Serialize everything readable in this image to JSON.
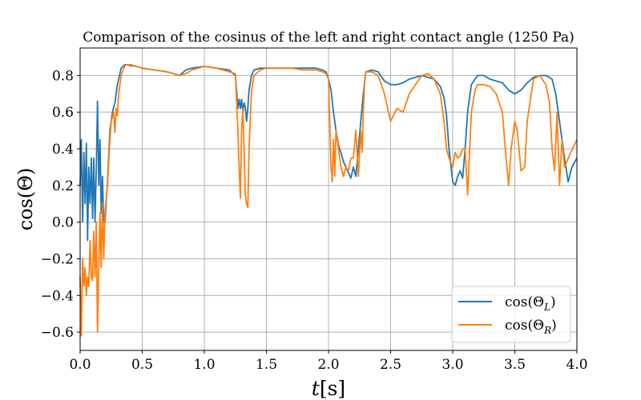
{
  "chart_data": {
    "type": "line",
    "title": "Comparison of the cosinus of the left and right contact angle (1250 Pa)",
    "xlabel_var": "t",
    "xlabel_unit": "[s]",
    "ylabel": "cos(Θ)",
    "xlim": [
      0.0,
      4.0
    ],
    "ylim": [
      -0.7,
      0.95
    ],
    "grid": true,
    "legend_position": "lower-right",
    "x_ticks": [
      "0.0",
      "0.5",
      "1.0",
      "1.5",
      "2.0",
      "2.5",
      "3.0",
      "3.5",
      "4.0"
    ],
    "y_ticks": [
      "−0.6",
      "−0.4",
      "−0.2",
      "0.0",
      "0.2",
      "0.4",
      "0.6",
      "0.8"
    ],
    "series": [
      {
        "name": "cos(Θ_L)",
        "legend_base": "cos(Θ",
        "legend_sub": "L",
        "legend_close": ")",
        "color": "#1f77b4",
        "x": [
          0.0,
          0.01,
          0.02,
          0.03,
          0.04,
          0.05,
          0.06,
          0.07,
          0.08,
          0.09,
          0.1,
          0.11,
          0.12,
          0.13,
          0.14,
          0.15,
          0.16,
          0.17,
          0.18,
          0.19,
          0.2,
          0.22,
          0.24,
          0.26,
          0.28,
          0.3,
          0.33,
          0.36,
          0.4,
          0.45,
          0.5,
          0.6,
          0.7,
          0.8,
          0.85,
          0.9,
          1.0,
          1.1,
          1.2,
          1.25,
          1.27,
          1.28,
          1.29,
          1.3,
          1.31,
          1.32,
          1.33,
          1.34,
          1.35,
          1.36,
          1.38,
          1.4,
          1.45,
          1.5,
          1.6,
          1.7,
          1.8,
          1.9,
          1.95,
          1.98,
          2.0,
          2.02,
          2.04,
          2.06,
          2.08,
          2.1,
          2.12,
          2.14,
          2.16,
          2.18,
          2.2,
          2.22,
          2.24,
          2.26,
          2.28,
          2.3,
          2.35,
          2.4,
          2.45,
          2.5,
          2.55,
          2.6,
          2.65,
          2.7,
          2.75,
          2.8,
          2.85,
          2.9,
          2.93,
          2.95,
          2.97,
          3.0,
          3.02,
          3.04,
          3.06,
          3.08,
          3.1,
          3.12,
          3.15,
          3.2,
          3.25,
          3.3,
          3.35,
          3.4,
          3.45,
          3.5,
          3.55,
          3.6,
          3.65,
          3.7,
          3.75,
          3.8,
          3.83,
          3.86,
          3.9,
          3.93,
          3.96,
          4.0
        ],
        "values": [
          0.2,
          0.45,
          0.0,
          0.38,
          0.1,
          0.43,
          -0.1,
          0.3,
          0.1,
          0.35,
          0.02,
          0.35,
          0.0,
          0.3,
          0.66,
          0.2,
          0.45,
          0.05,
          0.25,
          0.0,
          0.0,
          0.22,
          0.5,
          0.6,
          0.65,
          0.75,
          0.84,
          0.86,
          0.855,
          0.85,
          0.84,
          0.83,
          0.82,
          0.8,
          0.83,
          0.84,
          0.85,
          0.84,
          0.83,
          0.8,
          0.62,
          0.67,
          0.62,
          0.67,
          0.6,
          0.65,
          0.63,
          0.55,
          0.62,
          0.72,
          0.8,
          0.83,
          0.84,
          0.84,
          0.84,
          0.84,
          0.84,
          0.84,
          0.83,
          0.82,
          0.78,
          0.72,
          0.6,
          0.5,
          0.42,
          0.38,
          0.33,
          0.3,
          0.27,
          0.24,
          0.3,
          0.25,
          0.4,
          0.55,
          0.7,
          0.82,
          0.83,
          0.82,
          0.77,
          0.75,
          0.75,
          0.76,
          0.78,
          0.79,
          0.8,
          0.79,
          0.78,
          0.74,
          0.68,
          0.58,
          0.4,
          0.22,
          0.2,
          0.25,
          0.28,
          0.24,
          0.4,
          0.6,
          0.75,
          0.8,
          0.8,
          0.78,
          0.77,
          0.76,
          0.72,
          0.7,
          0.72,
          0.76,
          0.79,
          0.8,
          0.8,
          0.78,
          0.7,
          0.55,
          0.35,
          0.22,
          0.3,
          0.35
        ]
      },
      {
        "name": "cos(Θ_R)",
        "legend_base": "cos(Θ",
        "legend_sub": "R",
        "legend_close": ")",
        "color": "#ff7f0e",
        "x": [
          0.0,
          0.01,
          0.02,
          0.03,
          0.04,
          0.05,
          0.06,
          0.07,
          0.08,
          0.09,
          0.1,
          0.11,
          0.12,
          0.13,
          0.14,
          0.15,
          0.16,
          0.17,
          0.18,
          0.19,
          0.2,
          0.22,
          0.24,
          0.25,
          0.27,
          0.28,
          0.29,
          0.3,
          0.31,
          0.33,
          0.36,
          0.4,
          0.45,
          0.5,
          0.6,
          0.7,
          0.8,
          0.85,
          0.9,
          1.0,
          1.1,
          1.2,
          1.25,
          1.27,
          1.28,
          1.29,
          1.3,
          1.31,
          1.32,
          1.33,
          1.34,
          1.35,
          1.36,
          1.38,
          1.4,
          1.45,
          1.5,
          1.6,
          1.7,
          1.8,
          1.9,
          1.95,
          1.98,
          2.0,
          2.02,
          2.03,
          2.04,
          2.05,
          2.06,
          2.08,
          2.1,
          2.12,
          2.14,
          2.16,
          2.18,
          2.2,
          2.22,
          2.24,
          2.26,
          2.27,
          2.28,
          2.29,
          2.3,
          2.35,
          2.4,
          2.45,
          2.5,
          2.55,
          2.6,
          2.65,
          2.7,
          2.75,
          2.8,
          2.85,
          2.9,
          2.93,
          2.95,
          2.97,
          3.0,
          3.02,
          3.04,
          3.06,
          3.08,
          3.1,
          3.12,
          3.15,
          3.18,
          3.2,
          3.25,
          3.3,
          3.35,
          3.4,
          3.43,
          3.45,
          3.47,
          3.5,
          3.52,
          3.55,
          3.58,
          3.6,
          3.65,
          3.7,
          3.75,
          3.78,
          3.8,
          3.82,
          3.84,
          3.86,
          3.88,
          3.9,
          3.95,
          4.0
        ],
        "values": [
          -0.3,
          -0.62,
          -0.2,
          -0.35,
          -0.25,
          -0.4,
          -0.3,
          -0.35,
          -0.1,
          -0.3,
          -0.32,
          -0.05,
          -0.3,
          0.0,
          -0.6,
          -0.25,
          0.05,
          -0.25,
          0.1,
          -0.2,
          0.05,
          0.2,
          0.45,
          0.55,
          0.6,
          0.49,
          0.62,
          0.58,
          0.7,
          0.8,
          0.855,
          0.86,
          0.85,
          0.84,
          0.83,
          0.82,
          0.8,
          0.81,
          0.83,
          0.85,
          0.84,
          0.82,
          0.81,
          0.5,
          0.3,
          0.13,
          0.5,
          0.62,
          0.4,
          0.15,
          0.1,
          0.08,
          0.4,
          0.72,
          0.8,
          0.83,
          0.84,
          0.84,
          0.84,
          0.83,
          0.83,
          0.82,
          0.81,
          0.78,
          0.3,
          0.22,
          0.45,
          0.25,
          0.5,
          0.4,
          0.3,
          0.25,
          0.3,
          0.28,
          0.35,
          0.35,
          0.5,
          0.25,
          0.5,
          0.38,
          0.6,
          0.75,
          0.82,
          0.82,
          0.8,
          0.7,
          0.55,
          0.62,
          0.6,
          0.7,
          0.75,
          0.8,
          0.81,
          0.78,
          0.7,
          0.55,
          0.4,
          0.35,
          0.3,
          0.38,
          0.35,
          0.36,
          0.4,
          0.4,
          0.15,
          0.6,
          0.72,
          0.75,
          0.75,
          0.74,
          0.7,
          0.6,
          0.35,
          0.2,
          0.4,
          0.55,
          0.5,
          0.28,
          0.3,
          0.55,
          0.78,
          0.8,
          0.75,
          0.65,
          0.4,
          0.28,
          0.6,
          0.2,
          0.45,
          0.3,
          0.38,
          0.45
        ]
      }
    ]
  }
}
